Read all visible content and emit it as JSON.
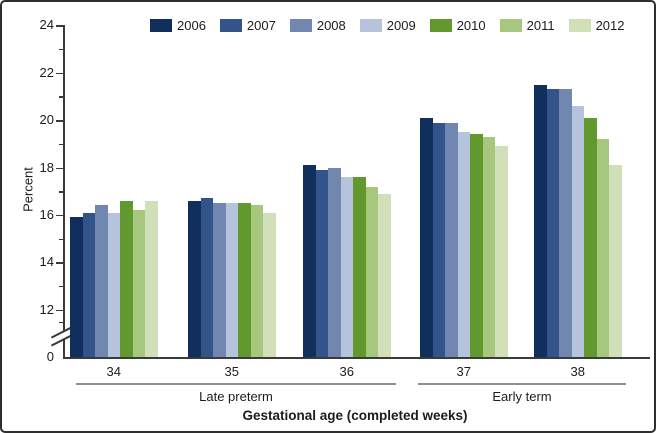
{
  "figure": {
    "background": "#ffffff",
    "border_color": "#2e2e2e"
  },
  "y_axis": {
    "title": "Percent",
    "major_ticks": [
      24,
      22,
      20,
      18,
      16,
      14,
      12
    ],
    "minor_ticks": [
      23,
      21,
      19,
      17,
      15,
      13
    ],
    "zero_label": "0",
    "has_axis_break": true
  },
  "x_axis": {
    "title": "Gestational age (completed weeks)",
    "group_labels": [
      {
        "label": "Late preterm",
        "weeks": [
          "34",
          "35",
          "36"
        ]
      },
      {
        "label": "Early term",
        "weeks": [
          "37",
          "38"
        ]
      }
    ]
  },
  "chart_data": {
    "type": "bar",
    "title": "",
    "categories": [
      "34",
      "35",
      "36",
      "37",
      "38"
    ],
    "series": [
      {
        "name": "2006",
        "color": "#102f5c",
        "values": [
          15.9,
          16.6,
          18.1,
          20.1,
          21.5
        ]
      },
      {
        "name": "2007",
        "color": "#32548a",
        "values": [
          16.1,
          16.7,
          17.9,
          19.9,
          21.3
        ]
      },
      {
        "name": "2008",
        "color": "#7187b0",
        "values": [
          16.4,
          16.5,
          18.0,
          19.9,
          21.3
        ]
      },
      {
        "name": "2009",
        "color": "#b6c3dd",
        "values": [
          16.1,
          16.5,
          17.6,
          19.5,
          20.6
        ]
      },
      {
        "name": "2010",
        "color": "#62992f",
        "values": [
          16.6,
          16.5,
          17.6,
          19.4,
          20.1
        ]
      },
      {
        "name": "2011",
        "color": "#a8c77e",
        "values": [
          16.2,
          16.4,
          17.2,
          19.3,
          19.2
        ]
      },
      {
        "name": "2012",
        "color": "#d1e0b8",
        "values": [
          16.6,
          16.1,
          16.9,
          18.9,
          18.1
        ]
      }
    ],
    "ylabel": "Percent",
    "xlabel": "Gestational age (completed weeks)",
    "ylim_display": [
      12,
      24
    ],
    "axis_break_between": [
      0,
      12
    ],
    "legend_position": "top",
    "grid": false
  }
}
